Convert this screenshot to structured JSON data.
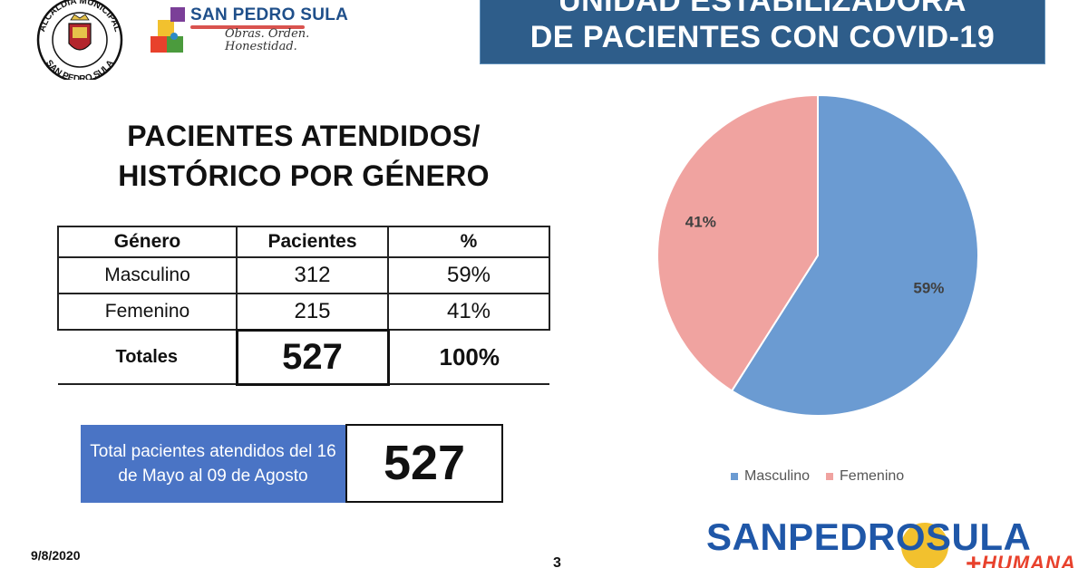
{
  "header": {
    "seal": {
      "top_text": "ALCALDÍA MUNICIPAL",
      "bottom_text": "SAN PEDRO SULA"
    },
    "city_logo": {
      "name": "SAN PEDRO SULA",
      "tagline_line1": "Obras. Orden.",
      "tagline_line2": "Honestidad."
    },
    "banner": {
      "line1": "UNIDAD ESTABILIZADORA",
      "line2": "DE PACIENTES CON COVID-19"
    }
  },
  "section": {
    "title_line1": "PACIENTES ATENDIDOS/",
    "title_line2": "HISTÓRICO POR GÉNERO"
  },
  "table": {
    "headers": [
      "Género",
      "Pacientes",
      "%"
    ],
    "rows": [
      {
        "genero": "Masculino",
        "pacientes": "312",
        "pct": "59%"
      },
      {
        "genero": "Femenino",
        "pacientes": "215",
        "pct": "41%"
      }
    ],
    "totals": {
      "label": "Totales",
      "pacientes": "527",
      "pct": "100%"
    }
  },
  "total_box": {
    "description": "Total pacientes atendidos del 16 de Mayo al 09 de Agosto",
    "value": "527"
  },
  "chart_data": {
    "type": "pie",
    "categories": [
      "Masculino",
      "Femenino"
    ],
    "values": [
      59,
      41
    ],
    "labels": [
      "59%",
      "41%"
    ],
    "colors": [
      "#6b9bd2",
      "#f0a3a0"
    ],
    "legend": "bottom",
    "title": ""
  },
  "footer": {
    "date": "9/8/2020",
    "page": "3",
    "brand_word": "SANPEDROSULA",
    "brand_sub": "HUMANA",
    "brand_cross": "+"
  },
  "colors": {
    "banner_bg": "#2e5d8a",
    "box_bg": "#4a74c5",
    "brand_blue": "#1f57a8",
    "brand_red": "#e8412c",
    "brand_sun": "#f2c12e"
  }
}
